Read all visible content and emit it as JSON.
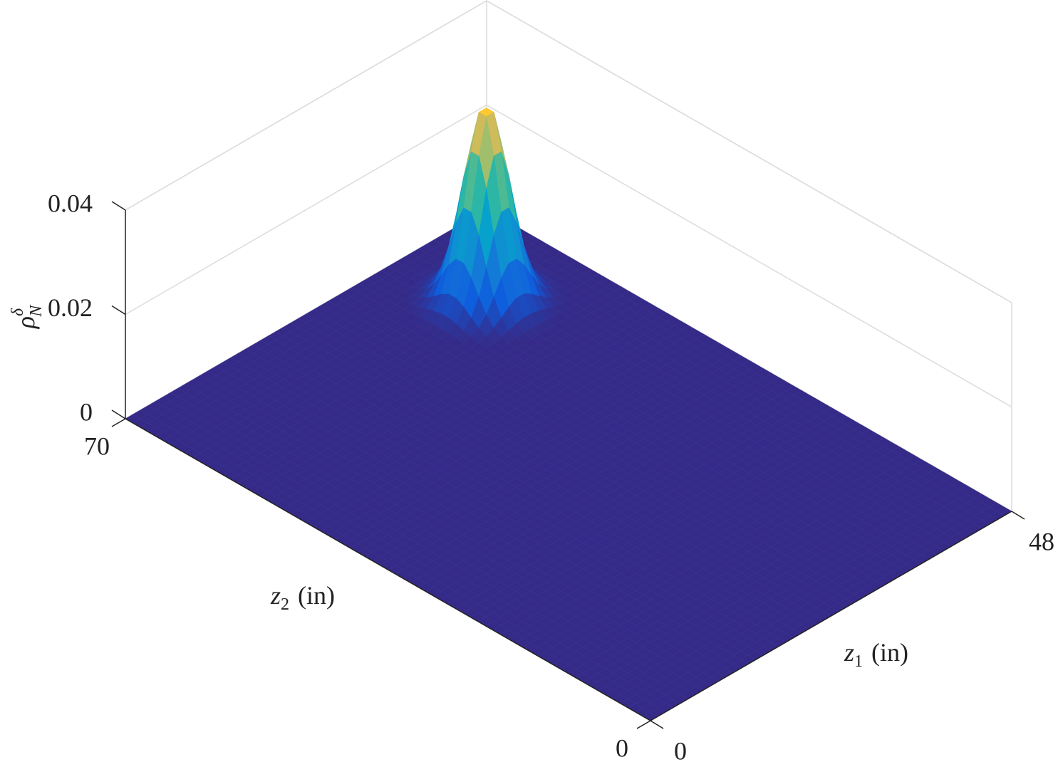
{
  "chart_data": {
    "type": "surface",
    "xlabel": {
      "symbol": "z",
      "subscript": "1",
      "unit": "(in)"
    },
    "ylabel": {
      "symbol": "z",
      "subscript": "2",
      "unit": "(in)"
    },
    "zlabel": {
      "symbol": "ρ",
      "subscript": "N",
      "superscript": "δ"
    },
    "xlim": [
      0,
      48
    ],
    "ylim": [
      0,
      70
    ],
    "zlim": [
      0,
      0.04
    ],
    "xticks": [
      0,
      48
    ],
    "yticks": [
      0,
      70
    ],
    "zticks": [
      0,
      0.02,
      0.04
    ],
    "surface": {
      "peak_z1": 37.5,
      "peak_z2": 59.5,
      "peak_height": 0.038,
      "sigma": 2.2
    },
    "colormap": "parula",
    "grid": true
  }
}
